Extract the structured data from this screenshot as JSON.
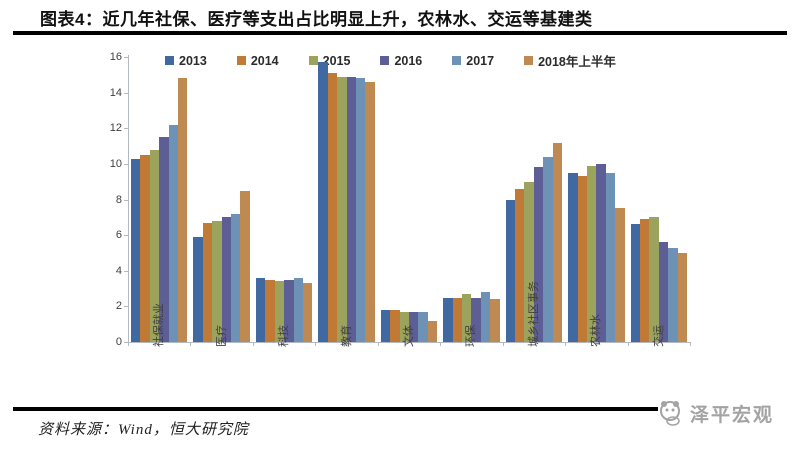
{
  "header": {
    "title": "图表4：近几年社保、医疗等支出占比明显上升，农林水、交运等基建类"
  },
  "chart_data": {
    "type": "bar",
    "title": "",
    "xlabel": "",
    "ylabel": "",
    "ylim": [
      0,
      16
    ],
    "y_ticks": [
      0,
      2,
      4,
      6,
      8,
      10,
      12,
      14,
      16
    ],
    "grid": false,
    "legend_position": "top",
    "categories": [
      "社保就业",
      "医疗",
      "科技",
      "教育",
      "文体",
      "环保",
      "城乡社区事务",
      "农林水",
      "交运"
    ],
    "series": [
      {
        "name": "2013",
        "color": "#4169a1",
        "values": [
          10.3,
          5.9,
          3.6,
          15.7,
          1.8,
          2.5,
          8.0,
          9.5,
          6.6
        ]
      },
      {
        "name": "2014",
        "color": "#c07a35",
        "values": [
          10.5,
          6.7,
          3.5,
          15.1,
          1.8,
          2.5,
          8.6,
          9.3,
          6.9
        ]
      },
      {
        "name": "2015",
        "color": "#9ca35c",
        "values": [
          10.8,
          6.8,
          3.4,
          14.9,
          1.7,
          2.7,
          9.0,
          9.9,
          7.0
        ]
      },
      {
        "name": "2016",
        "color": "#5d5e96",
        "values": [
          11.5,
          7.0,
          3.5,
          14.9,
          1.7,
          2.5,
          9.8,
          10.0,
          5.6
        ]
      },
      {
        "name": "2017",
        "color": "#6e92b6",
        "values": [
          12.2,
          7.2,
          3.6,
          14.8,
          1.7,
          2.8,
          10.4,
          9.5,
          5.3
        ]
      },
      {
        "name": "2018年上半年",
        "color": "#bf8952",
        "values": [
          14.8,
          8.5,
          3.3,
          14.6,
          1.2,
          2.4,
          11.2,
          7.5,
          5.0
        ]
      }
    ]
  },
  "footer": {
    "source": "资料来源：Wind，恒大研究院",
    "logo_text": "泽平宏观"
  }
}
